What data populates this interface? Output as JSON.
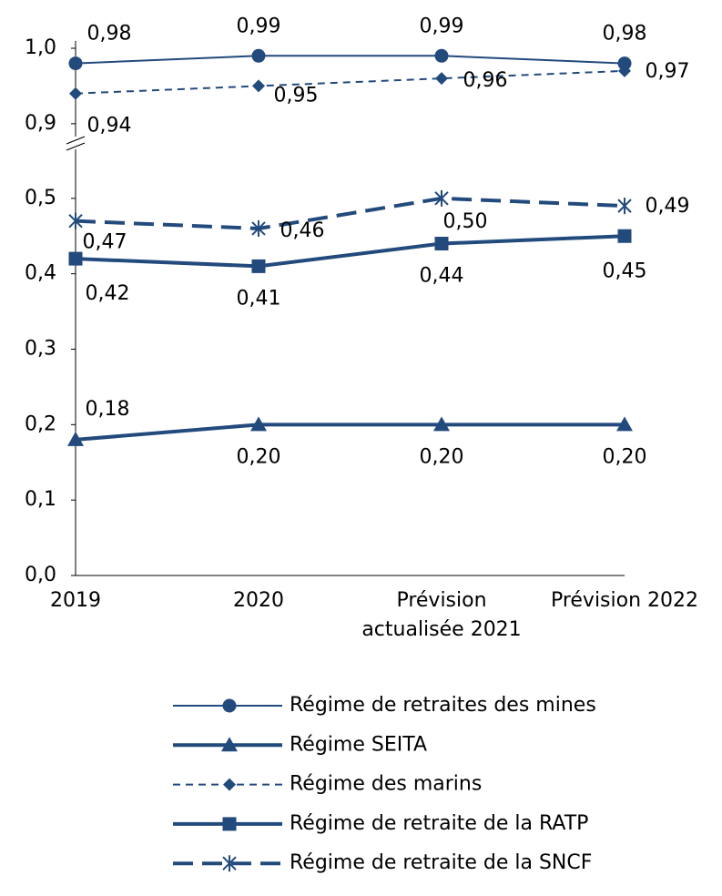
{
  "chart_data": {
    "type": "line",
    "categories": [
      "2019",
      "2020",
      "Prévision actualisée 2021",
      "Prévision 2022"
    ],
    "series": [
      {
        "name": "Régime de retraites des mines",
        "color": "#234a7c",
        "marker": "circle",
        "dash": "solid",
        "width": 2,
        "values": [
          0.98,
          0.99,
          0.99,
          0.98
        ],
        "value_labels": [
          "0,98",
          "0,99",
          "0,99",
          "0,98"
        ]
      },
      {
        "name": "Régime SEITA",
        "color": "#234a7c",
        "marker": "triangle",
        "dash": "solid",
        "width": 4,
        "values": [
          0.18,
          0.2,
          0.2,
          0.2
        ],
        "value_labels": [
          "0,18",
          "0,20",
          "0,20",
          "0,20"
        ]
      },
      {
        "name": "Régime des marins",
        "color": "#234a7c",
        "marker": "diamond",
        "dash": "dashed",
        "width": 2,
        "values": [
          0.94,
          0.95,
          0.96,
          0.97
        ],
        "value_labels": [
          "0,94",
          "0,95",
          "0,96",
          "0,97"
        ]
      },
      {
        "name": "Régime de retraite de la RATP",
        "color": "#234a7c",
        "marker": "square",
        "dash": "solid",
        "width": 4,
        "values": [
          0.42,
          0.41,
          0.44,
          0.45
        ],
        "value_labels": [
          "0,42",
          "0,41",
          "0,44",
          "0,45"
        ]
      },
      {
        "name": "Régime de retraite de la SNCF",
        "color": "#234a7c",
        "marker": "asterisk",
        "dash": "longdash",
        "width": 4,
        "values": [
          0.47,
          0.46,
          0.5,
          0.49
        ],
        "value_labels": [
          "0,47",
          "0,46",
          "0,50",
          "0,49"
        ]
      }
    ],
    "ylim": [
      0,
      1.0
    ],
    "axis_break": [
      0.5,
      0.9
    ],
    "yticks": [
      {
        "value": 0,
        "label": "0,0"
      },
      {
        "value": 0.1,
        "label": "0,1"
      },
      {
        "value": 0.2,
        "label": "0,2"
      },
      {
        "value": 0.3,
        "label": "0,3"
      },
      {
        "value": 0.4,
        "label": "0,4"
      },
      {
        "value": 0.5,
        "label": "0,5"
      },
      {
        "value": 0.9,
        "label": "0,9"
      },
      {
        "value": 1.0,
        "label": "1,0"
      }
    ],
    "legend": "bottom",
    "grid": false
  }
}
